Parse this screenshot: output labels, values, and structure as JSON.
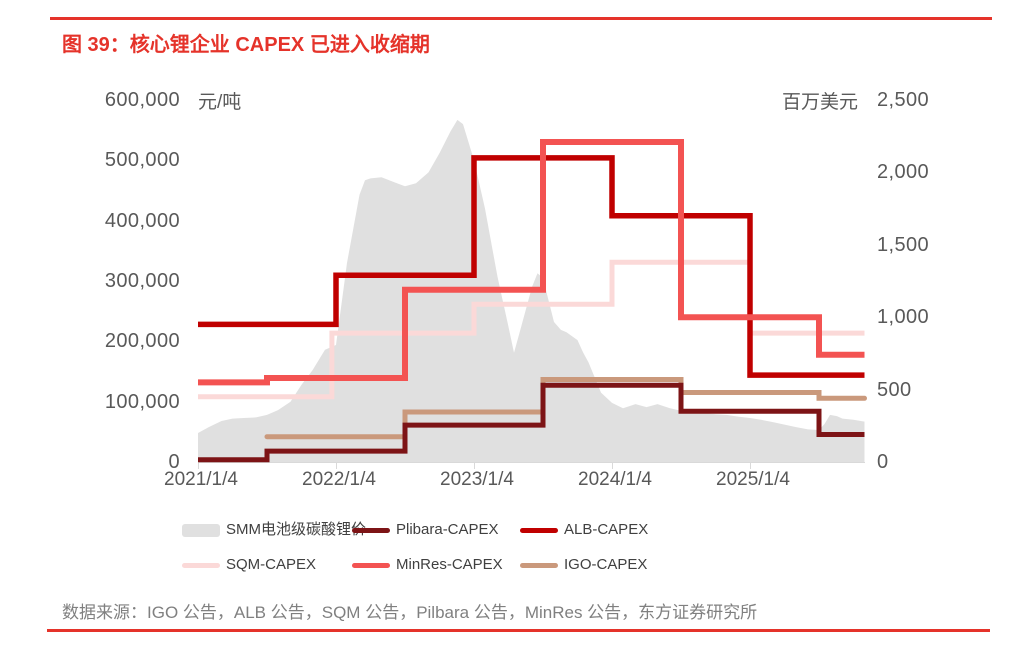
{
  "figure": {
    "title": "图 39：核心锂企业 CAPEX 已进入收缩期",
    "source": "数据来源：IGO 公告，ALB 公告，SQM 公告，Pilbara 公告，MinRes 公告，东方证券研究所",
    "accent_color": "#E5332A",
    "title_color": "#E5332A"
  },
  "chart_data": {
    "type": "area+step-line combo",
    "title": "图 39：核心锂企业 CAPEX 已进入收缩期",
    "grid": "off",
    "x_axis": {
      "range_years": [
        2021.0,
        2025.83
      ],
      "axis_color": "#D9D9D9",
      "ticks": [
        {
          "date": 2021.0,
          "label": "2021/1/4"
        },
        {
          "date": 2022.0,
          "label": "2022/1/4"
        },
        {
          "date": 2023.0,
          "label": "2023/1/4"
        },
        {
          "date": 2024.0,
          "label": "2024/1/4"
        },
        {
          "date": 2025.0,
          "label": "2025/1/4"
        }
      ]
    },
    "left_axis": {
      "unit": "元/吨",
      "range": [
        0,
        600000
      ],
      "ticks": [
        {
          "value": 0,
          "label": "0"
        },
        {
          "value": 100000,
          "label": "100,000"
        },
        {
          "value": 200000,
          "label": "200,000"
        },
        {
          "value": 300000,
          "label": "300,000"
        },
        {
          "value": 400000,
          "label": "400,000"
        },
        {
          "value": 500000,
          "label": "500,000"
        },
        {
          "value": 600000,
          "label": "600,000"
        }
      ]
    },
    "right_axis": {
      "unit": "百万美元",
      "range": [
        0,
        2500
      ],
      "ticks": [
        {
          "value": 0,
          "label": "0"
        },
        {
          "value": 500,
          "label": "500"
        },
        {
          "value": 1000,
          "label": "1,000"
        },
        {
          "value": 1500,
          "label": "1,500"
        },
        {
          "value": 2000,
          "label": "2,000"
        },
        {
          "value": 2500,
          "label": "2,500"
        }
      ]
    },
    "area_series": {
      "name": "SMM电池级碳酸锂价",
      "axis": "left",
      "color": "#E0E0E0",
      "points": [
        [
          2021.0,
          48000
        ],
        [
          2021.08,
          58000
        ],
        [
          2021.17,
          68000
        ],
        [
          2021.25,
          72000
        ],
        [
          2021.33,
          73000
        ],
        [
          2021.42,
          74000
        ],
        [
          2021.5,
          78000
        ],
        [
          2021.58,
          86000
        ],
        [
          2021.67,
          100000
        ],
        [
          2021.75,
          128000
        ],
        [
          2021.83,
          152000
        ],
        [
          2021.92,
          186000
        ],
        [
          2022.0,
          194000
        ],
        [
          2022.08,
          330000
        ],
        [
          2022.17,
          443000
        ],
        [
          2022.21,
          467000
        ],
        [
          2022.25,
          470000
        ],
        [
          2022.33,
          472000
        ],
        [
          2022.42,
          464000
        ],
        [
          2022.5,
          457000
        ],
        [
          2022.58,
          462000
        ],
        [
          2022.67,
          480000
        ],
        [
          2022.75,
          512000
        ],
        [
          2022.83,
          548000
        ],
        [
          2022.88,
          567000
        ],
        [
          2022.92,
          560000
        ],
        [
          2023.0,
          500000
        ],
        [
          2023.08,
          420000
        ],
        [
          2023.17,
          307000
        ],
        [
          2023.25,
          224000
        ],
        [
          2023.29,
          181000
        ],
        [
          2023.33,
          214000
        ],
        [
          2023.42,
          290000
        ],
        [
          2023.46,
          313000
        ],
        [
          2023.5,
          305000
        ],
        [
          2023.54,
          268000
        ],
        [
          2023.58,
          232000
        ],
        [
          2023.63,
          219000
        ],
        [
          2023.67,
          215000
        ],
        [
          2023.75,
          202000
        ],
        [
          2023.79,
          182000
        ],
        [
          2023.83,
          165000
        ],
        [
          2023.92,
          115000
        ],
        [
          2024.0,
          98000
        ],
        [
          2024.08,
          89000
        ],
        [
          2024.17,
          96000
        ],
        [
          2024.25,
          91000
        ],
        [
          2024.33,
          96000
        ],
        [
          2024.42,
          89000
        ],
        [
          2024.5,
          85000
        ],
        [
          2024.58,
          83000
        ],
        [
          2024.67,
          81000
        ],
        [
          2024.75,
          79000
        ],
        [
          2024.83,
          78000
        ],
        [
          2024.92,
          75000
        ],
        [
          2025.0,
          73000
        ],
        [
          2025.08,
          70000
        ],
        [
          2025.17,
          66000
        ],
        [
          2025.25,
          62000
        ],
        [
          2025.33,
          58000
        ],
        [
          2025.42,
          54000
        ],
        [
          2025.5,
          53000
        ],
        [
          2025.54,
          63000
        ],
        [
          2025.58,
          78000
        ],
        [
          2025.63,
          76000
        ],
        [
          2025.67,
          72000
        ],
        [
          2025.75,
          70000
        ],
        [
          2025.83,
          67000
        ]
      ]
    },
    "line_series": [
      {
        "name": "SQM-CAPEX",
        "axis": "right",
        "color": "#FBD9D8",
        "width": 5,
        "end": 2025.83,
        "steps": [
          [
            2021.0,
            450
          ],
          [
            2021.97,
            890
          ],
          [
            2023.0,
            1090
          ],
          [
            2024.0,
            1380
          ],
          [
            2025.0,
            890
          ]
        ]
      },
      {
        "name": "IGO-CAPEX",
        "axis": "right",
        "color": "#CA997C",
        "width": 5,
        "end": 2025.83,
        "steps": [
          [
            2021.5,
            175
          ],
          [
            2022.5,
            345
          ],
          [
            2023.5,
            570
          ],
          [
            2024.5,
            480
          ],
          [
            2025.5,
            440
          ]
        ]
      },
      {
        "name": "Plibara-CAPEX",
        "axis": "right",
        "color": "#7D1416",
        "width": 5,
        "end": 2025.83,
        "steps": [
          [
            2021.0,
            15
          ],
          [
            2021.5,
            75
          ],
          [
            2022.5,
            255
          ],
          [
            2023.5,
            530
          ],
          [
            2024.5,
            350
          ],
          [
            2025.5,
            190
          ]
        ]
      },
      {
        "name": "ALB-CAPEX",
        "axis": "right",
        "color": "#C00000",
        "width": 5.5,
        "end": 2025.83,
        "steps": [
          [
            2021.0,
            950
          ],
          [
            2022.0,
            1290
          ],
          [
            2023.0,
            2100
          ],
          [
            2024.0,
            1700
          ],
          [
            2025.0,
            600
          ]
        ]
      },
      {
        "name": "MinRes-CAPEX",
        "axis": "right",
        "color": "#F35352",
        "width": 6,
        "end": 2025.83,
        "steps": [
          [
            2021.0,
            550
          ],
          [
            2021.5,
            580
          ],
          [
            2022.5,
            1190
          ],
          [
            2023.5,
            2210
          ],
          [
            2024.5,
            1000
          ],
          [
            2025.5,
            740
          ]
        ]
      }
    ],
    "legend": {
      "rows": [
        [
          {
            "label": "SMM电池级碳酸锂价",
            "color": "#E0E0E0",
            "type": "area"
          },
          {
            "label": "Plibara-CAPEX",
            "color": "#7D1416",
            "type": "line"
          },
          {
            "label": "ALB-CAPEX",
            "color": "#C00000",
            "type": "line"
          }
        ],
        [
          {
            "label": "SQM-CAPEX",
            "color": "#FBD9D8",
            "type": "line"
          },
          {
            "label": "MinRes-CAPEX",
            "color": "#F35352",
            "type": "line"
          },
          {
            "label": "IGO-CAPEX",
            "color": "#CA997C",
            "type": "line"
          }
        ]
      ]
    }
  }
}
